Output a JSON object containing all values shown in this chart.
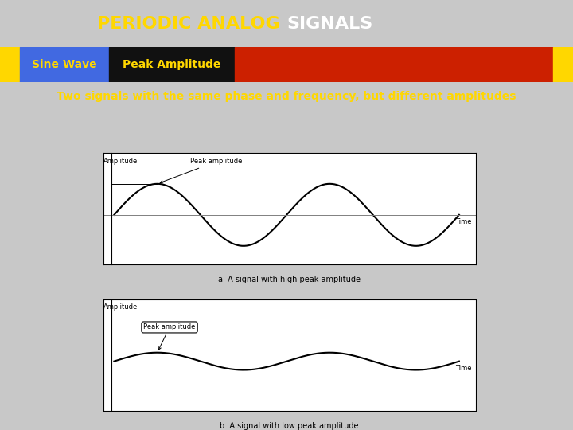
{
  "title_part1": "PERIODIC ANALOG ",
  "title_part2": "SIGNALS",
  "title_bg": "#8B0000",
  "title_color1": "#FFD700",
  "title_color2": "#FFFFFF",
  "title_fontsize": 16,
  "tab1_text": "Sine Wave",
  "tab1_bg": "#4169E1",
  "tab1_color": "#FFD700",
  "tab2_text": "Peak Amplitude",
  "tab2_bg": "#111111",
  "tab2_color": "#FFD700",
  "red_strip_bg": "#CC2000",
  "gold_strip_bg": "#FFD700",
  "subtitle": "Two signals with the same phase and frequency, but different amplitudes",
  "subtitle_bg": "#00008B",
  "subtitle_color": "#FFD700",
  "subtitle_fontsize": 10,
  "caption_a": "a. A signal with high peak amplitude",
  "caption_b": "b. A signal with low peak amplitude",
  "caption_fontsize": 7,
  "bg_color": "#C8C8C8",
  "plot_bg": "#FFFFFF",
  "wave_color": "#000000",
  "wave_lw": 1.5,
  "anno_fontsize": 6,
  "axis_label_fontsize": 6,
  "high_amp": 1.0,
  "low_amp": 0.28
}
